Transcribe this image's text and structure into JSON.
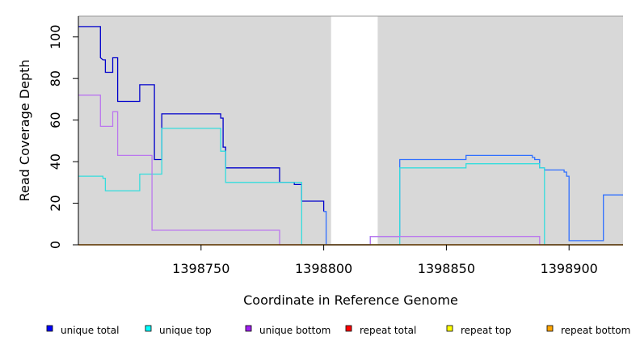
{
  "chart_data": {
    "type": "line",
    "xlabel": "Coordinate in Reference Genome",
    "ylabel": "Read Coverage Depth",
    "xlim": [
      1398700,
      1398922
    ],
    "ylim": [
      0,
      110
    ],
    "x_ticks": [
      1398750,
      1398800,
      1398850,
      1398900
    ],
    "x_tick_labels": [
      "1398750",
      "1398800",
      "1398850",
      "1398900"
    ],
    "y_ticks": [
      0,
      20,
      40,
      60,
      80,
      100
    ],
    "y_tick_labels": [
      "0",
      "20",
      "40",
      "60",
      "80",
      "100"
    ],
    "grid": false,
    "background_color": "#d8d8d8",
    "background_gap": [
      1398803,
      1398822
    ],
    "legend_position": "bottom",
    "series": [
      {
        "name": "unique total",
        "color": "#0000cc",
        "points": [
          [
            1398700,
            105
          ],
          [
            1398709,
            105
          ],
          [
            1398709,
            90
          ],
          [
            1398710,
            89
          ],
          [
            1398711,
            89
          ],
          [
            1398711,
            83
          ],
          [
            1398714,
            83
          ],
          [
            1398714,
            90
          ],
          [
            1398716,
            90
          ],
          [
            1398716,
            69
          ],
          [
            1398725,
            69
          ],
          [
            1398725,
            77
          ],
          [
            1398731,
            77
          ],
          [
            1398731,
            41
          ],
          [
            1398734,
            41
          ],
          [
            1398734,
            63
          ],
          [
            1398758,
            63
          ],
          [
            1398758,
            61
          ],
          [
            1398759,
            61
          ],
          [
            1398759,
            47
          ],
          [
            1398760,
            47
          ],
          [
            1398760,
            37
          ],
          [
            1398782,
            37
          ],
          [
            1398782,
            30
          ],
          [
            1398788,
            30
          ],
          [
            1398788,
            29
          ],
          [
            1398791,
            29
          ],
          [
            1398791,
            21
          ],
          [
            1398800,
            21
          ],
          [
            1398800,
            16
          ]
        ]
      },
      {
        "name": "unique total",
        "color": "#2f6fff",
        "points": [
          [
            1398800,
            16
          ],
          [
            1398801,
            16
          ],
          [
            1398801,
            0
          ],
          [
            1398819,
            0
          ],
          [
            1398819,
            4
          ],
          [
            1398831,
            4
          ],
          [
            1398831,
            41
          ],
          [
            1398858,
            41
          ],
          [
            1398858,
            43
          ],
          [
            1398885,
            43
          ],
          [
            1398885,
            42
          ],
          [
            1398886,
            42
          ],
          [
            1398886,
            41
          ],
          [
            1398888,
            41
          ],
          [
            1398888,
            37
          ],
          [
            1398890,
            37
          ],
          [
            1398890,
            36
          ],
          [
            1398898,
            36
          ],
          [
            1398898,
            35
          ],
          [
            1398899,
            35
          ],
          [
            1398899,
            33
          ],
          [
            1398900,
            33
          ],
          [
            1398900,
            2
          ],
          [
            1398914,
            2
          ],
          [
            1398914,
            24
          ],
          [
            1398922,
            24
          ]
        ]
      },
      {
        "name": "unique top",
        "color": "#33dddd",
        "points": [
          [
            1398700,
            33
          ],
          [
            1398710,
            33
          ],
          [
            1398710,
            32
          ],
          [
            1398711,
            32
          ],
          [
            1398711,
            26
          ],
          [
            1398725,
            26
          ],
          [
            1398725,
            34
          ],
          [
            1398734,
            34
          ],
          [
            1398734,
            56
          ],
          [
            1398758,
            56
          ],
          [
            1398758,
            45
          ],
          [
            1398760,
            45
          ],
          [
            1398760,
            30
          ],
          [
            1398791,
            30
          ],
          [
            1398791,
            0
          ],
          [
            1398831,
            0
          ],
          [
            1398831,
            37
          ],
          [
            1398858,
            37
          ],
          [
            1398858,
            39
          ],
          [
            1398888,
            39
          ],
          [
            1398888,
            37
          ],
          [
            1398890,
            37
          ],
          [
            1398890,
            0
          ],
          [
            1398922,
            0
          ]
        ]
      },
      {
        "name": "unique bottom",
        "color": "#bb77ee",
        "points": [
          [
            1398700,
            72
          ],
          [
            1398709,
            72
          ],
          [
            1398709,
            57
          ],
          [
            1398714,
            57
          ],
          [
            1398714,
            64
          ],
          [
            1398716,
            64
          ],
          [
            1398716,
            43
          ],
          [
            1398730,
            43
          ],
          [
            1398730,
            7
          ],
          [
            1398782,
            7
          ],
          [
            1398782,
            0
          ],
          [
            1398819,
            0
          ],
          [
            1398819,
            4
          ],
          [
            1398888,
            4
          ],
          [
            1398888,
            0
          ],
          [
            1398922,
            0
          ]
        ]
      },
      {
        "name": "repeat total",
        "color": "#ff0000",
        "points": [
          [
            1398700,
            0
          ],
          [
            1398922,
            0
          ]
        ]
      },
      {
        "name": "repeat top",
        "color": "#ffff00",
        "points": [
          [
            1398700,
            0
          ],
          [
            1398922,
            0
          ]
        ]
      },
      {
        "name": "repeat bottom",
        "color": "#ff9900",
        "points": [
          [
            1398700,
            0
          ],
          [
            1398922,
            0
          ]
        ]
      }
    ],
    "legend": [
      {
        "name": "unique total",
        "color": "#0000ff"
      },
      {
        "name": "unique top",
        "color": "#00ffff"
      },
      {
        "name": "unique bottom",
        "color": "#a020f0"
      },
      {
        "name": "repeat total",
        "color": "#ff0000"
      },
      {
        "name": "repeat top",
        "color": "#ffff00"
      },
      {
        "name": "repeat bottom",
        "color": "#ffa500"
      }
    ]
  }
}
